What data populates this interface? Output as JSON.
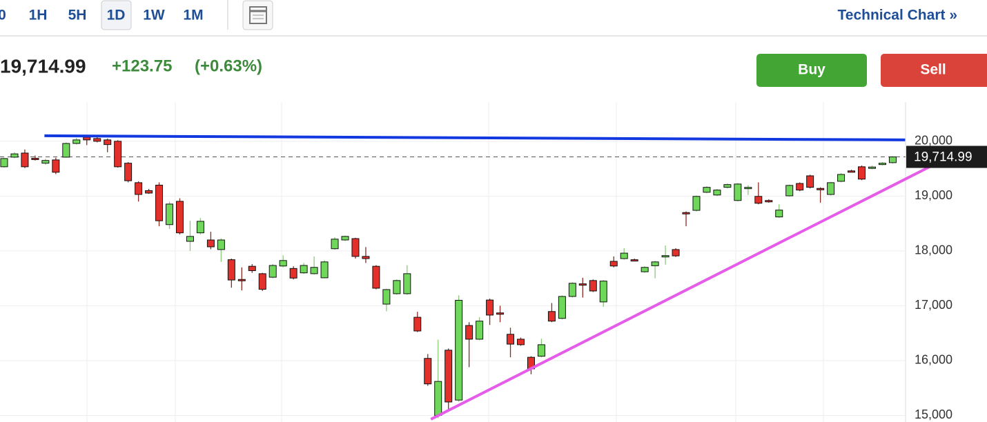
{
  "toolbar": {
    "ranges": [
      "0",
      "1H",
      "5H",
      "1D",
      "1W",
      "1M"
    ],
    "selected": "1D",
    "link": "Technical Chart »"
  },
  "quote": {
    "price": "19,714.99",
    "change": "+123.75",
    "change_percent": "(+0.63%)"
  },
  "actions": {
    "buy": "Buy",
    "sell": "Sell"
  },
  "chart_data": {
    "type": "candlestick",
    "up_color": "#6fd85a",
    "down_color": "#e3302b",
    "ylim": [
      14880,
      20690
    ],
    "yticks": [
      {
        "value": 15000,
        "label": "15,000"
      },
      {
        "value": 16000,
        "label": "16,000"
      },
      {
        "value": 17000,
        "label": "17,000"
      },
      {
        "value": 18000,
        "label": "18,000"
      },
      {
        "value": 19000,
        "label": "19,000"
      },
      {
        "value": 20000,
        "label": "20,000"
      }
    ],
    "grid": true,
    "last_price": {
      "value": 19714.99,
      "label": "19,714.99"
    },
    "open": [
      19535,
      19710,
      19785,
      19690,
      19600,
      19660,
      19710,
      19960,
      20075,
      20050,
      20025,
      20000,
      19600,
      19245,
      19100,
      19200,
      18480,
      18905,
      18175,
      18330,
      18200,
      18025,
      17840,
      17480,
      17720,
      17585,
      17520,
      17725,
      17680,
      17600,
      17585,
      17510,
      18040,
      18200,
      18225,
      17900,
      17720,
      17030,
      17220,
      17220,
      16790,
      16040,
      15000,
      16190,
      15280,
      16640,
      16390,
      17105,
      16870,
      16480,
      16390,
      16060,
      16080,
      16895,
      16770,
      17170,
      17400,
      17460,
      17070,
      17810,
      17860,
      17840,
      17620,
      17730,
      17900,
      18025,
      18700,
      18740,
      19070,
      19020,
      19160,
      18920,
      19150,
      18995,
      18920,
      18620,
      19005,
      19230,
      19370,
      19140,
      19030,
      19270,
      19460,
      19535,
      19510,
      19580,
      19610
    ],
    "high": [
      19700,
      19800,
      19850,
      19740,
      19680,
      19700,
      19980,
      20060,
      20100,
      20080,
      20050,
      20020,
      19620,
      19270,
      19130,
      19250,
      18900,
      18960,
      18550,
      18600,
      18350,
      18230,
      17860,
      17700,
      17760,
      17600,
      17760,
      17920,
      17720,
      17780,
      17900,
      17830,
      18250,
      18280,
      18240,
      18070,
      17740,
      17310,
      17480,
      17740,
      16890,
      16120,
      16380,
      16220,
      17190,
      16700,
      16790,
      17130,
      17000,
      16600,
      16420,
      16080,
      16400,
      17050,
      17190,
      17430,
      17510,
      17480,
      17470,
      17900,
      18050,
      17860,
      17720,
      17820,
      18100,
      18050,
      18720,
      19010,
      19180,
      19130,
      19230,
      19240,
      19200,
      19250,
      18940,
      18850,
      19210,
      19250,
      19390,
      19160,
      19260,
      19420,
      19480,
      19560,
      19560,
      19620,
      19730
    ],
    "low": [
      19520,
      19690,
      19510,
      19650,
      19570,
      19400,
      19700,
      19940,
      19930,
      19980,
      19800,
      19520,
      19250,
      18900,
      19040,
      18450,
      18400,
      18300,
      18000,
      18300,
      18030,
      17800,
      17330,
      17280,
      17600,
      17270,
      17500,
      17700,
      17480,
      17580,
      17570,
      17500,
      18020,
      18180,
      17860,
      17780,
      17300,
      16900,
      17200,
      17200,
      16520,
      15540,
      14950,
      15080,
      15250,
      15880,
      16370,
      16650,
      16700,
      16060,
      16270,
      15750,
      16060,
      16700,
      16750,
      17150,
      17150,
      17250,
      16980,
      17700,
      17840,
      17810,
      17600,
      17500,
      17750,
      17890,
      18450,
      18720,
      19050,
      19000,
      19140,
      18900,
      19020,
      18850,
      18880,
      18600,
      18990,
      19090,
      19140,
      18880,
      19010,
      19250,
      19440,
      19290,
      19490,
      19560,
      19590
    ],
    "close": [
      19685,
      19770,
      19535,
      19680,
      19650,
      19435,
      19960,
      20025,
      20025,
      20000,
      19940,
      19535,
      19280,
      19030,
      19055,
      18550,
      18855,
      18330,
      18265,
      18540,
      18075,
      18200,
      17470,
      17460,
      17640,
      17300,
      17735,
      17825,
      17505,
      17735,
      17700,
      17800,
      18215,
      18265,
      17900,
      17860,
      17320,
      17295,
      17460,
      17585,
      16540,
      15575,
      15620,
      15245,
      17100,
      16390,
      16720,
      16830,
      16850,
      16300,
      16290,
      15850,
      16290,
      16720,
      17170,
      17410,
      17380,
      17270,
      17450,
      17725,
      17960,
      17830,
      17700,
      17800,
      17915,
      17910,
      18690,
      18995,
      19160,
      19110,
      19210,
      19220,
      19160,
      18870,
      18900,
      18745,
      19195,
      19110,
      19160,
      19130,
      19245,
      19395,
      19450,
      19310,
      19530,
      19600,
      19715
    ],
    "trendlines": [
      {
        "color": "#1238e0",
        "x": [
          3.9,
          87.2
        ],
        "y": [
          20100,
          20025
        ]
      },
      {
        "color": "#e45ce8",
        "x": [
          41.3,
          90.1
        ],
        "y": [
          14930,
          19585
        ]
      }
    ]
  }
}
